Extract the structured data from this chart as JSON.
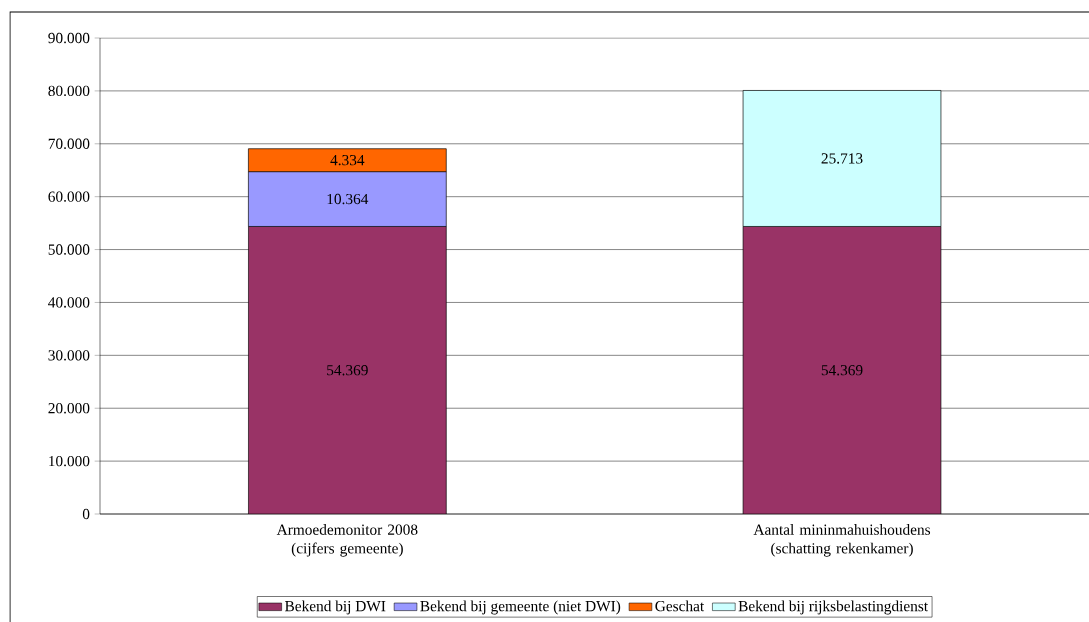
{
  "chart_data": {
    "type": "bar",
    "stacked": true,
    "categories": [
      "Armoedemonitor 2008 (cijfers gemeente)",
      "Aantal mininmahuishoudens (schatting rekenkamer)"
    ],
    "series": [
      {
        "name": "Bekend bij DWI",
        "color": "#993366",
        "values": [
          54369,
          54369
        ],
        "value_labels": [
          "54.369",
          "54.369"
        ]
      },
      {
        "name": "Bekend bij gemeente (niet DWI)",
        "color": "#9999ff",
        "values": [
          10364,
          null
        ],
        "value_labels": [
          "10.364",
          null
        ]
      },
      {
        "name": "Geschat",
        "color": "#ff6600",
        "values": [
          4334,
          null
        ],
        "value_labels": [
          "4.334",
          null
        ]
      },
      {
        "name": "Bekend bij rijksbelastingdienst",
        "color": "#ccffff",
        "values": [
          null,
          25713
        ],
        "value_labels": [
          null,
          "25.713"
        ]
      }
    ],
    "ylim": [
      0,
      90000
    ],
    "yticks": [
      {
        "value": 0,
        "label": "0"
      },
      {
        "value": 10000,
        "label": "10.000"
      },
      {
        "value": 20000,
        "label": "20.000"
      },
      {
        "value": 30000,
        "label": "30.000"
      },
      {
        "value": 40000,
        "label": "40.000"
      },
      {
        "value": 50000,
        "label": "50.000"
      },
      {
        "value": 60000,
        "label": "60.000"
      },
      {
        "value": 70000,
        "label": "70.000"
      },
      {
        "value": 80000,
        "label": "80.000"
      },
      {
        "value": 90000,
        "label": "90.000"
      }
    ],
    "grid": "y",
    "legend": "bottom"
  }
}
